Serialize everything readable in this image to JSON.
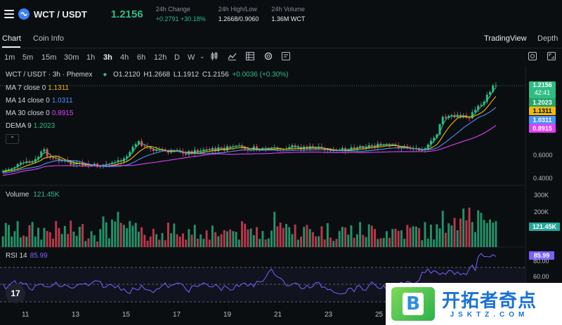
{
  "header": {
    "pair": "WCT / USDT",
    "price": "1.2156",
    "stats": [
      {
        "label": "24h Change",
        "value": "+0.2791 +30.18%",
        "green": true
      },
      {
        "label": "24h High/Low",
        "value": "1.2668/0.9060",
        "green": false
      },
      {
        "label": "24h Volume",
        "value": "1.36M WCT",
        "green": false
      }
    ]
  },
  "tabs": {
    "chart": "Chart",
    "coin_info": "Coin Info",
    "tradingview": "TradingView",
    "depth": "Depth"
  },
  "timeframes": [
    "1m",
    "5m",
    "15m",
    "30m",
    "1h",
    "3h",
    "4h",
    "6h",
    "12h",
    "D",
    "W"
  ],
  "active_timeframe": "3h",
  "tools": [
    "candle-type-icon",
    "indicators-icon",
    "layout-icon",
    "settings-icon",
    "add-note-icon"
  ],
  "right_tools": [
    "screenshot-icon",
    "fullscreen-icon"
  ],
  "legend": {
    "title": "WCT / USDT · 3h · Phemex",
    "ohlc": {
      "o": "O1.2120",
      "h": "H1.2668",
      "l": "L1.1912",
      "c": "C1.2156",
      "chg": "+0.0036 (+0.30%)"
    },
    "ma7": {
      "label": "MA 7 close 0",
      "value": "1.1311",
      "color": "#f0b90b"
    },
    "ma14": {
      "label": "MA 14 close 0",
      "value": "1.0311",
      "color": "#4f8ff7"
    },
    "ma30": {
      "label": "MA 30 close 0",
      "value": "0.8915",
      "color": "#e040fb"
    },
    "dema": {
      "label": "DEMA 9",
      "value": "1.2023",
      "color": "#2ebd85"
    },
    "volume_label": "Volume",
    "volume_value": "121.45K",
    "rsi_label": "RSI 14",
    "rsi_value": "85.99"
  },
  "price_axis": {
    "tags": [
      {
        "text": "1.2156",
        "color": "#2ebd85"
      },
      {
        "text": "42:41",
        "color": "#2ebd85"
      },
      {
        "text": "1.2023",
        "color": "#26a66a"
      },
      {
        "text": "1.1311",
        "color": "#f0b90b"
      },
      {
        "text": "1.0311",
        "color": "#4f8ff7"
      },
      {
        "text": "0.8915",
        "color": "#e040fb"
      }
    ],
    "ticks": [
      "0.6000",
      "0.4000"
    ],
    "vol_ticks": [
      "300K",
      "200K"
    ],
    "vol_tag": "121.45K",
    "rsi_ticks": [
      "80.00",
      "60.00"
    ],
    "rsi_tag": "85.99"
  },
  "x_axis": [
    "11",
    "13",
    "15",
    "17",
    "19",
    "21",
    "23",
    "25"
  ],
  "colors": {
    "up": "#2ebd85",
    "down": "#f6465d",
    "rsi": "#7b61ff"
  },
  "watermark": {
    "badge": "B",
    "title": "开拓者奇点",
    "sub": "JSKTZ.COM"
  },
  "tv_logo": "17"
}
